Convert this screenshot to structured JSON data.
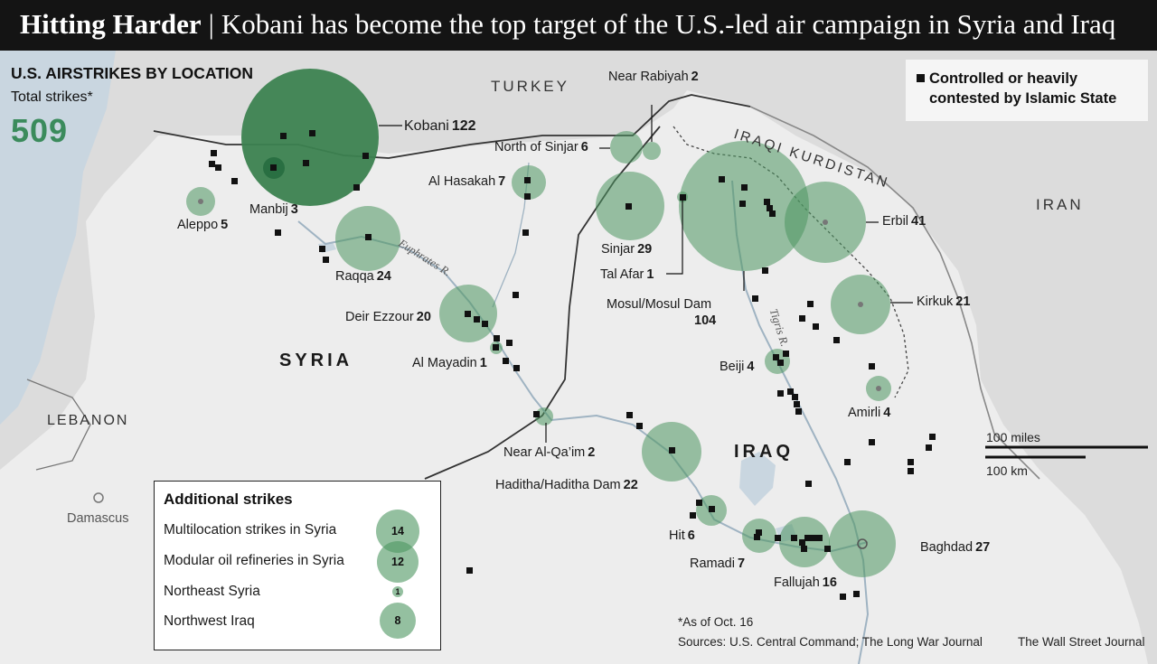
{
  "header": {
    "title_bold": "Hitting Harder",
    "separator": "|",
    "title_rest": "Kobani has become the top target of the U.S.-led air campaign in Syria and Iraq"
  },
  "stats": {
    "title": "U.S. AIRSTRIKES BY LOCATION",
    "subtitle": "Total strikes*",
    "total": "509"
  },
  "legend": {
    "marker_label": "Controlled or heavily contested by Islamic State"
  },
  "colors": {
    "bubble_fill": "#4c9660",
    "total_number": "#3b8b5c",
    "title_bar": "#141414",
    "land": "#ededed",
    "water": "#c9d6e0"
  },
  "countries": {
    "turkey": "TURKEY",
    "iraqi_kurdistan": "IRAQI KURDISTAN",
    "iran": "IRAN",
    "syria": "SYRIA",
    "iraq": "IRAQ",
    "lebanon": "LEBANON"
  },
  "rivers": {
    "euphrates": "Euphrates R.",
    "tigris": "Tigris R."
  },
  "capitals": {
    "damascus": "Damascus"
  },
  "locations": [
    {
      "id": "kobani",
      "name": "Kobani",
      "strikes": "122"
    },
    {
      "id": "near-rabiyah",
      "name": "Near Rabiyah",
      "strikes": "2"
    },
    {
      "id": "north-of-sinjar",
      "name": "North of Sinjar",
      "strikes": "6"
    },
    {
      "id": "al-hasakah",
      "name": "Al Hasakah",
      "strikes": "7"
    },
    {
      "id": "aleppo",
      "name": "Aleppo",
      "strikes": "5"
    },
    {
      "id": "manbij",
      "name": "Manbij",
      "strikes": "3"
    },
    {
      "id": "raqqa",
      "name": "Raqqa",
      "strikes": "24"
    },
    {
      "id": "sinjar",
      "name": "Sinjar",
      "strikes": "29"
    },
    {
      "id": "tal-afar",
      "name": "Tal Afar",
      "strikes": "1"
    },
    {
      "id": "mosul",
      "name": "Mosul/Mosul Dam",
      "strikes": "104"
    },
    {
      "id": "erbil",
      "name": "Erbil",
      "strikes": "41"
    },
    {
      "id": "kirkuk",
      "name": "Kirkuk",
      "strikes": "21"
    },
    {
      "id": "deir-ezzour",
      "name": "Deir Ezzour",
      "strikes": "20"
    },
    {
      "id": "al-mayadin",
      "name": "Al Mayadin",
      "strikes": "1"
    },
    {
      "id": "beiji",
      "name": "Beiji",
      "strikes": "4"
    },
    {
      "id": "amirli",
      "name": "Amirli",
      "strikes": "4"
    },
    {
      "id": "near-al-qaim",
      "name": "Near Al-Qa’im",
      "strikes": "2"
    },
    {
      "id": "haditha",
      "name": "Haditha/Haditha Dam",
      "strikes": "22"
    },
    {
      "id": "hit",
      "name": "Hit",
      "strikes": "6"
    },
    {
      "id": "ramadi",
      "name": "Ramadi",
      "strikes": "7"
    },
    {
      "id": "fallujah",
      "name": "Fallujah",
      "strikes": "16"
    },
    {
      "id": "baghdad",
      "name": "Baghdad",
      "strikes": "27"
    }
  ],
  "additional": {
    "title": "Additional strikes",
    "rows": [
      {
        "label": "Multilocation strikes in Syria",
        "value": "14"
      },
      {
        "label": "Modular oil refineries in Syria",
        "value": "12"
      },
      {
        "label": "Northeast Syria",
        "value": "1"
      },
      {
        "label": "Northwest Iraq",
        "value": "8"
      }
    ]
  },
  "scale": {
    "miles": "100 miles",
    "km": "100 km"
  },
  "footer": {
    "note": "*As of Oct. 16",
    "sources": "Sources: U.S. Central Command; The Long War Journal",
    "credit": "The Wall Street Journal"
  }
}
